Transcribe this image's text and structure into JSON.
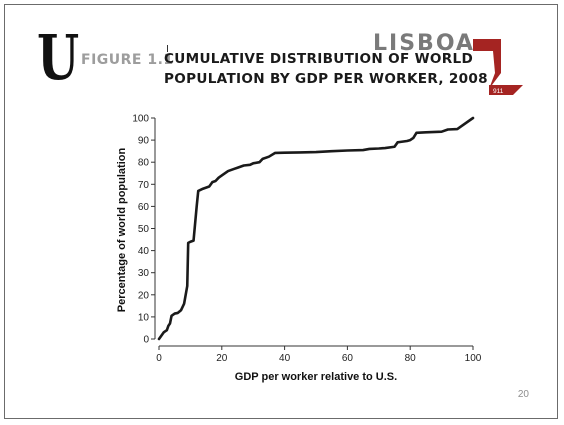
{
  "header": {
    "big_letter": "U",
    "figure_label": "FIGURE 1.1",
    "title": "CUMULATIVE DISTRIBUTION OF WORLD POPULATION BY GDP PER WORKER, 2008",
    "logo_text": "LISBOA",
    "badge_text": "911"
  },
  "page_number": "20",
  "colors": {
    "brand_red": "#a52422",
    "line": "#1a1a1a",
    "label_gray": "#9d9d9d"
  },
  "chart_data": {
    "type": "line",
    "xlabel": "GDP per worker relative to U.S.",
    "ylabel": "Percentage of world population",
    "xlim": [
      0,
      100
    ],
    "ylim": [
      0,
      100
    ],
    "x_ticks": [
      0,
      20,
      40,
      60,
      80,
      100
    ],
    "y_ticks": [
      0,
      10,
      20,
      30,
      40,
      50,
      60,
      70,
      80,
      90,
      100
    ],
    "grid": false,
    "series": [
      {
        "x": [
          0,
          1.5,
          2.5,
          3,
          3.5,
          4,
          5,
          6,
          7,
          8,
          9,
          9.3,
          10,
          11,
          12,
          12.5,
          14,
          16,
          17,
          18,
          19,
          20,
          22,
          23,
          24,
          25,
          27,
          29,
          30,
          32,
          33,
          35,
          37,
          40,
          45,
          50,
          55,
          60,
          65,
          67,
          70,
          72,
          75,
          76,
          77,
          79,
          80,
          81,
          82,
          85,
          88,
          90,
          92,
          95,
          100
        ],
        "y": [
          0,
          3,
          4,
          6,
          7,
          10.5,
          11.5,
          11.8,
          13,
          16,
          24,
          43.5,
          44,
          44.5,
          60,
          67,
          68,
          69,
          71,
          71.5,
          73,
          74,
          76,
          76.5,
          77,
          77.5,
          78.5,
          78.8,
          79.5,
          80,
          81.5,
          82.5,
          84.2,
          84.3,
          84.4,
          84.6,
          85,
          85.3,
          85.5,
          86,
          86.2,
          86.4,
          87,
          89,
          89.2,
          89.6,
          90,
          91,
          93.3,
          93.5,
          93.7,
          93.8,
          94.8,
          95,
          100
        ]
      }
    ]
  }
}
